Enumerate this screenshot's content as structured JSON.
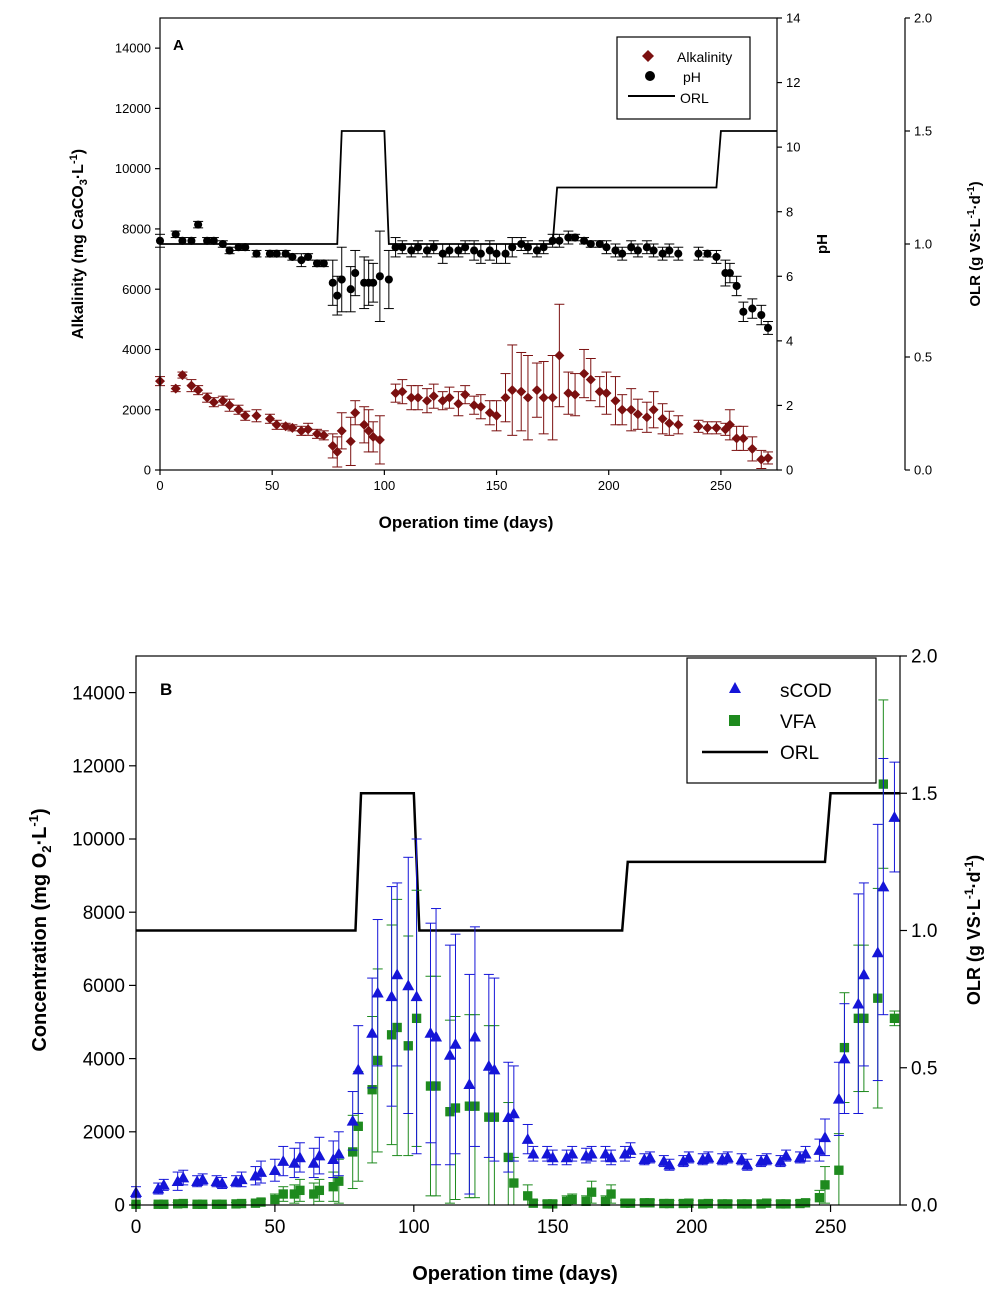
{
  "chart_data": [
    {
      "type": "scatter",
      "panel_label": "A",
      "xlabel": "Operation time (days)",
      "ylabel_left": "Alkalinity (mg CaCO3·L-1)",
      "ylabel_right1": "pH",
      "ylabel_right2": "OLR (g VS·L-1·d-1)",
      "xlim": [
        0,
        275
      ],
      "ylim_left": [
        0,
        15000
      ],
      "ylim_right1": [
        0,
        14
      ],
      "ylim_right2": [
        0,
        2.0
      ],
      "x_ticks": [
        "0",
        "50",
        "100",
        "150",
        "200",
        "250"
      ],
      "y_left_ticks": [
        "0",
        "2000",
        "4000",
        "6000",
        "8000",
        "10000",
        "12000",
        "14000"
      ],
      "y_right1_ticks": [
        "0",
        "2",
        "4",
        "6",
        "8",
        "10",
        "12",
        "14"
      ],
      "y_right2_ticks": [
        "0.0",
        "0.5",
        "1.0",
        "1.5",
        "2.0"
      ],
      "legend": {
        "placement": "top-right",
        "entries": [
          "Alkalinity",
          "pH",
          "ORL"
        ]
      },
      "colors": {
        "alkalinity": "#7B1010",
        "ph": "#000000",
        "orl": "#000000"
      },
      "series": [
        {
          "name": "Alkalinity",
          "axis": "left",
          "marker": "diamond",
          "x": [
            0,
            7,
            10,
            14,
            17,
            21,
            24,
            28,
            31,
            35,
            38,
            43,
            49,
            52,
            56,
            59,
            63,
            66,
            70,
            73,
            77,
            79,
            81,
            85,
            87,
            91,
            93,
            95,
            98,
            105,
            108,
            112,
            115,
            119,
            122,
            126,
            129,
            133,
            136,
            140,
            143,
            147,
            150,
            154,
            157,
            161,
            164,
            168,
            171,
            175,
            178,
            182,
            185,
            189,
            192,
            196,
            199,
            203,
            206,
            210,
            213,
            217,
            220,
            224,
            227,
            231,
            240,
            244,
            248,
            252,
            254,
            257,
            260,
            264,
            268,
            271
          ],
          "values": [
            2950,
            2700,
            3150,
            2800,
            2650,
            2400,
            2250,
            2300,
            2150,
            2000,
            1800,
            1800,
            1700,
            1500,
            1450,
            1400,
            1300,
            1350,
            1200,
            1150,
            800,
            600,
            1300,
            950,
            1900,
            1500,
            1300,
            1100,
            1000,
            2550,
            2600,
            2400,
            2400,
            2300,
            2450,
            2300,
            2400,
            2200,
            2500,
            2150,
            2100,
            1900,
            1800,
            2400,
            2650,
            2600,
            2400,
            2650,
            2400,
            2400,
            3800,
            2550,
            2500,
            3200,
            3000,
            2600,
            2550,
            2300,
            2000,
            2000,
            1850,
            1750,
            2000,
            1700,
            1550,
            1500,
            1450,
            1400,
            1400,
            1350,
            1500,
            1050,
            1050,
            700,
            350,
            400
          ],
          "err": [
            150,
            100,
            100,
            200,
            150,
            150,
            150,
            150,
            200,
            150,
            150,
            200,
            150,
            150,
            100,
            100,
            150,
            200,
            150,
            150,
            400,
            500,
            600,
            800,
            400,
            600,
            700,
            500,
            800,
            300,
            400,
            400,
            400,
            400,
            400,
            300,
            350,
            400,
            300,
            300,
            400,
            400,
            500,
            800,
            1500,
            1300,
            1400,
            900,
            1200,
            1400,
            1700,
            700,
            700,
            800,
            700,
            500,
            700,
            800,
            500,
            700,
            500,
            500,
            600,
            500,
            400,
            300,
            200,
            200,
            200,
            200,
            500,
            400,
            400,
            400,
            300,
            200
          ]
        },
        {
          "name": "pH",
          "axis": "right1",
          "marker": "circle",
          "x": [
            0,
            7,
            10,
            14,
            17,
            21,
            24,
            28,
            31,
            35,
            38,
            43,
            49,
            52,
            56,
            59,
            63,
            66,
            70,
            73,
            77,
            79,
            81,
            85,
            87,
            91,
            93,
            95,
            98,
            102,
            105,
            108,
            112,
            115,
            119,
            122,
            126,
            129,
            133,
            136,
            140,
            143,
            147,
            150,
            154,
            157,
            161,
            164,
            168,
            171,
            175,
            178,
            182,
            185,
            189,
            192,
            196,
            199,
            203,
            206,
            210,
            213,
            217,
            220,
            224,
            227,
            231,
            240,
            244,
            248,
            252,
            254,
            257,
            260,
            264,
            268,
            271
          ],
          "values": [
            7.1,
            7.3,
            7.1,
            7.1,
            7.6,
            7.1,
            7.1,
            7.0,
            6.8,
            6.9,
            6.9,
            6.7,
            6.7,
            6.7,
            6.7,
            6.6,
            6.5,
            6.6,
            6.4,
            6.4,
            5.8,
            5.4,
            5.9,
            5.6,
            6.1,
            5.8,
            5.8,
            5.8,
            6.0,
            5.9,
            6.9,
            6.9,
            6.8,
            6.9,
            6.8,
            6.9,
            6.7,
            6.8,
            6.8,
            6.9,
            6.8,
            6.7,
            6.8,
            6.7,
            6.7,
            6.9,
            7.0,
            6.9,
            6.8,
            6.9,
            7.1,
            7.1,
            7.2,
            7.2,
            7.1,
            7.0,
            7.0,
            6.9,
            6.8,
            6.7,
            6.9,
            6.8,
            6.9,
            6.8,
            6.7,
            6.8,
            6.7,
            6.7,
            6.7,
            6.6,
            6.1,
            6.1,
            5.7,
            4.9,
            5.0,
            4.8,
            4.4
          ],
          "err": [
            0.2,
            0.1,
            0.1,
            0.1,
            0.1,
            0.1,
            0.1,
            0.1,
            0.1,
            0.1,
            0.1,
            0.1,
            0.1,
            0.1,
            0.1,
            0.1,
            0.2,
            0.1,
            0.1,
            0.1,
            0.7,
            0.6,
            1.0,
            0.7,
            0.7,
            0.8,
            0.7,
            0.6,
            1.4,
            0.9,
            0.3,
            0.2,
            0.2,
            0.2,
            0.2,
            0.2,
            0.3,
            0.2,
            0.2,
            0.2,
            0.3,
            0.3,
            0.3,
            0.3,
            0.3,
            0.3,
            0.2,
            0.2,
            0.2,
            0.2,
            0.2,
            0.2,
            0.2,
            0.1,
            0.1,
            0.1,
            0.1,
            0.2,
            0.2,
            0.2,
            0.2,
            0.2,
            0.2,
            0.2,
            0.2,
            0.2,
            0.2,
            0.2,
            0.1,
            0.2,
            0.4,
            0.3,
            0.3,
            0.3,
            0.3,
            0.3,
            0.2
          ]
        },
        {
          "name": "ORL",
          "axis": "right2",
          "style": "line",
          "x": [
            0,
            79,
            81,
            100,
            102,
            175,
            177,
            248,
            250,
            275
          ],
          "values": [
            1.0,
            1.0,
            1.5,
            1.5,
            1.0,
            1.0,
            1.25,
            1.25,
            1.5,
            1.5
          ]
        }
      ]
    },
    {
      "type": "scatter",
      "panel_label": "B",
      "xlabel": "Operation time (days)",
      "ylabel_left": "Concentration (mg O2·L-1)",
      "ylabel_right": "OLR (g VS·L-1·d-1)",
      "xlim": [
        0,
        275
      ],
      "ylim_left": [
        0,
        15000
      ],
      "ylim_right": [
        0,
        2.0
      ],
      "x_ticks": [
        "0",
        "50",
        "100",
        "150",
        "200",
        "250"
      ],
      "y_left_ticks": [
        "0",
        "2000",
        "4000",
        "6000",
        "8000",
        "10000",
        "12000",
        "14000"
      ],
      "y_right_ticks": [
        "0.0",
        "0.5",
        "1.0",
        "1.5",
        "2.0"
      ],
      "legend": {
        "placement": "top-right",
        "entries": [
          "sCOD",
          "VFA",
          "ORL"
        ]
      },
      "colors": {
        "scod": "#1515D8",
        "vfa": "#1E8A1E",
        "orl": "#000000"
      },
      "series": [
        {
          "name": "sCOD",
          "axis": "left",
          "marker": "triangle",
          "x": [
            0,
            8,
            10,
            15,
            17,
            22,
            24,
            29,
            31,
            36,
            38,
            43,
            45,
            50,
            53,
            57,
            59,
            64,
            66,
            71,
            73,
            78,
            80,
            85,
            87,
            92,
            94,
            98,
            101,
            106,
            108,
            113,
            115,
            120,
            122,
            127,
            129,
            134,
            136,
            141,
            143,
            148,
            150,
            155,
            157,
            162,
            164,
            169,
            171,
            176,
            178,
            183,
            185,
            190,
            192,
            197,
            199,
            204,
            206,
            211,
            213,
            218,
            220,
            225,
            227,
            232,
            234,
            239,
            241,
            246,
            248,
            253,
            255,
            260,
            262,
            267,
            269,
            273
          ],
          "values": [
            350,
            450,
            550,
            650,
            750,
            650,
            700,
            650,
            600,
            650,
            700,
            800,
            900,
            950,
            1200,
            1150,
            1300,
            1150,
            1350,
            1250,
            1400,
            2300,
            3700,
            4700,
            5800,
            5700,
            6300,
            6000,
            5700,
            4700,
            4600,
            4100,
            4400,
            3300,
            4600,
            3800,
            3700,
            2400,
            2500,
            1800,
            1400,
            1400,
            1300,
            1300,
            1400,
            1350,
            1400,
            1400,
            1300,
            1400,
            1500,
            1250,
            1300,
            1200,
            1100,
            1200,
            1300,
            1250,
            1300,
            1250,
            1300,
            1250,
            1100,
            1200,
            1250,
            1200,
            1350,
            1300,
            1400,
            1500,
            1850,
            2900,
            4000,
            5500,
            6300,
            6900,
            8700,
            10600
          ],
          "err": [
            150,
            150,
            150,
            250,
            200,
            150,
            150,
            150,
            150,
            150,
            200,
            250,
            300,
            300,
            400,
            400,
            400,
            400,
            500,
            500,
            600,
            800,
            1200,
            1500,
            2000,
            3000,
            2500,
            3500,
            4300,
            3000,
            3500,
            3000,
            3000,
            3000,
            3000,
            2500,
            2500,
            1500,
            1300,
            400,
            200,
            200,
            200,
            200,
            200,
            200,
            200,
            200,
            200,
            200,
            200,
            150,
            150,
            150,
            150,
            150,
            150,
            150,
            150,
            150,
            150,
            150,
            150,
            150,
            150,
            150,
            150,
            150,
            200,
            300,
            500,
            1000,
            1500,
            3000,
            2500,
            3500,
            3500,
            1500
          ]
        },
        {
          "name": "VFA",
          "axis": "left",
          "marker": "square",
          "x": [
            0,
            8,
            10,
            15,
            17,
            22,
            24,
            29,
            31,
            36,
            38,
            43,
            45,
            50,
            53,
            57,
            59,
            64,
            66,
            71,
            73,
            78,
            80,
            85,
            87,
            92,
            94,
            98,
            101,
            106,
            108,
            113,
            115,
            120,
            122,
            127,
            129,
            134,
            136,
            141,
            143,
            148,
            150,
            155,
            157,
            162,
            164,
            169,
            171,
            176,
            178,
            183,
            185,
            190,
            192,
            197,
            199,
            204,
            206,
            211,
            213,
            218,
            220,
            225,
            227,
            232,
            234,
            239,
            241,
            246,
            248,
            253,
            255,
            260,
            262,
            267,
            269,
            273
          ],
          "values": [
            20,
            20,
            20,
            30,
            40,
            20,
            20,
            20,
            20,
            30,
            40,
            50,
            80,
            150,
            300,
            300,
            400,
            300,
            400,
            500,
            650,
            1450,
            2150,
            3150,
            3950,
            4650,
            4850,
            4350,
            5100,
            3250,
            3250,
            2550,
            2650,
            2700,
            2700,
            2400,
            2400,
            1300,
            600,
            250,
            50,
            30,
            30,
            100,
            150,
            100,
            350,
            100,
            300,
            50,
            50,
            60,
            60,
            40,
            40,
            40,
            50,
            30,
            40,
            30,
            30,
            30,
            30,
            30,
            50,
            30,
            30,
            40,
            60,
            200,
            550,
            950,
            4300,
            5100,
            5100,
            5650,
            11500,
            5100
          ],
          "err": [
            30,
            30,
            30,
            40,
            40,
            30,
            30,
            30,
            30,
            40,
            40,
            60,
            80,
            150,
            200,
            250,
            300,
            300,
            300,
            400,
            600,
            1000,
            1500,
            2000,
            2500,
            3000,
            3500,
            3000,
            3500,
            3000,
            3000,
            2500,
            2500,
            2500,
            2500,
            2500,
            2500,
            1500,
            700,
            300,
            80,
            80,
            80,
            150,
            150,
            150,
            300,
            150,
            250,
            80,
            80,
            80,
            80,
            80,
            80,
            80,
            80,
            80,
            80,
            80,
            80,
            80,
            80,
            80,
            80,
            80,
            80,
            80,
            80,
            200,
            500,
            1000,
            1500,
            2000,
            2000,
            3000,
            2300,
            200
          ]
        },
        {
          "name": "ORL",
          "axis": "right",
          "style": "line",
          "x": [
            0,
            79,
            81,
            100,
            102,
            175,
            177,
            248,
            250,
            275
          ],
          "values": [
            1.0,
            1.0,
            1.5,
            1.5,
            1.0,
            1.0,
            1.25,
            1.25,
            1.5,
            1.5
          ]
        }
      ]
    }
  ]
}
